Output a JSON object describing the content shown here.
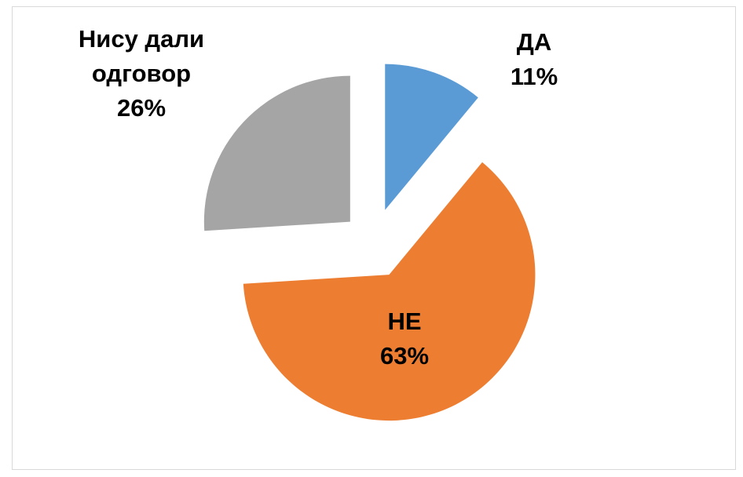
{
  "chart_data": {
    "type": "pie",
    "categories": [
      "ДА",
      "НЕ",
      "Нису дали одговор"
    ],
    "values": [
      11,
      63,
      26
    ],
    "value_labels": [
      "11%",
      "63%",
      "26%"
    ],
    "colors": [
      "#5b9bd5",
      "#ed7d31",
      "#a5a5a5"
    ]
  }
}
